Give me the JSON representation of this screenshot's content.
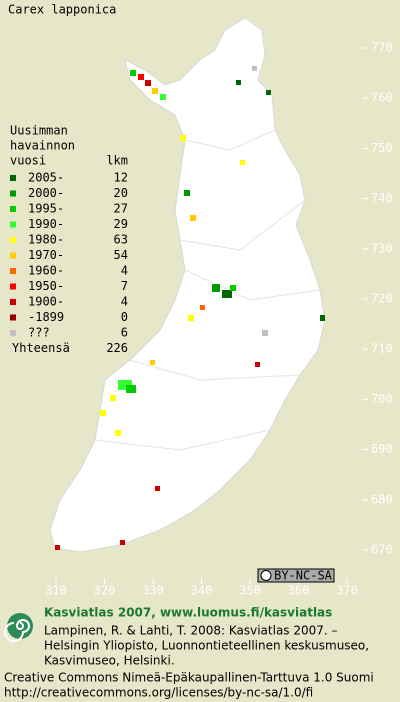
{
  "title": "Carex lapponica",
  "legend": {
    "heading": [
      "Uusimman",
      "havainnon",
      "vuosi"
    ],
    "count_heading": "lkm",
    "rows": [
      {
        "label": "2005-",
        "count": 12,
        "color": "#006600"
      },
      {
        "label": "2000-",
        "count": 20,
        "color": "#009900"
      },
      {
        "label": "1995-",
        "count": 27,
        "color": "#00cc00"
      },
      {
        "label": "1990-",
        "count": 29,
        "color": "#33ff33"
      },
      {
        "label": "1980-",
        "count": 63,
        "color": "#ffff00"
      },
      {
        "label": "1970-",
        "count": 54,
        "color": "#ffcc00"
      },
      {
        "label": "1960-",
        "count": 4,
        "color": "#ff6600"
      },
      {
        "label": "1950-",
        "count": 7,
        "color": "#ff0000"
      },
      {
        "label": "1900-",
        "count": 4,
        "color": "#cc0000"
      },
      {
        "label": "-1899",
        "count": 0,
        "color": "#990000"
      },
      {
        "label": "???",
        "count": 6,
        "color": "#c0c0c0"
      }
    ],
    "total_label": "Yhteensä",
    "total": 226
  },
  "axes": {
    "y_labels": [
      770,
      760,
      750,
      740,
      730,
      720,
      710,
      700,
      690,
      680,
      670
    ],
    "x_labels": [
      310,
      320,
      330,
      340,
      350,
      360,
      370
    ]
  },
  "badge": "BY-NC-SA",
  "footer": {
    "headline": "Kasviatlas 2007, www.luomus.fi/kasviatlas",
    "citation": [
      "Lampinen, R. & Lahti, T. 2008: Kasviatlas 2007. –",
      "Helsingin Yliopisto, Luonnontieteellinen keskusmuseo,",
      "Kasvimuseo, Helsinki."
    ],
    "license": [
      "Creative Commons Nimeä-Epäkaupallinen-Tarttuva 1.0 Suomi",
      "http://creativecommons.org/licenses/by-nc-sa/1.0/fi"
    ]
  }
}
